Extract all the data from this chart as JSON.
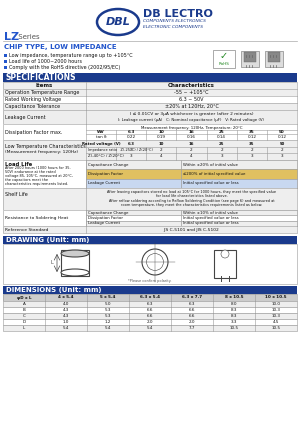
{
  "chip_type": "CHIP TYPE, LOW IMPEDANCE",
  "bullets": [
    "Low impedance, temperature range up to +105°C",
    "Load life of 1000~2000 hours",
    "Comply with the RoHS directive (2002/95/EC)"
  ],
  "spec_title": "SPECIFICATIONS",
  "spec_rows": [
    {
      "item": "Operation Temperature Range",
      "char": "-55 ~ +105°C"
    },
    {
      "item": "Rated Working Voltage",
      "char": "6.3 ~ 50V"
    },
    {
      "item": "Capacitance Tolerance",
      "char": "±20% at 120Hz, 20°C"
    }
  ],
  "leakage_label": "Leakage Current",
  "leakage_formula": "I ≤ 0.01CV or 3μA whichever is greater (after 2 minutes)",
  "leakage_sub": "I: Leakage current (μA)   C: Nominal capacitance (μF)   V: Rated voltage (V)",
  "dissipation_label": "Dissipation Factor max.",
  "dissipation_freq": "Measurement frequency: 120Hz, Temperature: 20°C",
  "dissipation_headers": [
    "WV",
    "6.3",
    "10",
    "16",
    "25",
    "35",
    "50"
  ],
  "dissipation_values": [
    "tan δ",
    "0.22",
    "0.19",
    "0.16",
    "0.14",
    "0.12",
    "0.12"
  ],
  "low_temp_label": "Low Temperature Characteristics\n(Measurement frequency: 120Hz)",
  "low_temp_headers": [
    "Rated voltage (V)",
    "6.3",
    "10",
    "16",
    "25",
    "35",
    "50"
  ],
  "low_temp_row1_label": "Impedance ratio   Z(-25°C) / Z(20°C)",
  "low_temp_row2_label": "Z(-40°C) / Z(20°C)",
  "low_temp_row1_vals": [
    "2",
    "2",
    "2",
    "2",
    "2",
    "2"
  ],
  "low_temp_row2_vals": [
    "3",
    "4",
    "4",
    "3",
    "3",
    "3"
  ],
  "load_life_label": "Load Life",
  "load_life_desc1": "After 2000 hours (1000 hours for 35,",
  "load_life_desc2": "50V) endurance at the rated",
  "load_life_desc3": "voltage 85, 105°C, measured at 20°C,",
  "load_life_desc4": "the capacitors meet the",
  "load_life_desc5": "characteristics requirements listed.",
  "load_life_rows": [
    [
      "Capacitance Change",
      "Within ±20% of initial value"
    ],
    [
      "Dissipation Factor",
      "≤200% of initial specified value"
    ],
    [
      "Leakage Current",
      "Initial specified value or less"
    ]
  ],
  "shelf_life_label": "Shelf Life",
  "shelf_life_text1": "After leaving capacitors stored no load at 105°C for 1000 hours, they meet the specified value",
  "shelf_life_text2": "for load life characteristics listed above.",
  "shelf_life_text3": "After reflow soldering according to Reflow Soldering Condition (see page 6) and measured at",
  "shelf_life_text4": "room temperature, they meet the characteristics requirements listed as below.",
  "resist_solder_label": "Resistance to Soldering Heat",
  "resist_solder_rows": [
    [
      "Capacitance Change",
      "Within ±10% of initial value"
    ],
    [
      "Dissipation Factor",
      "Initial specified value or less"
    ],
    [
      "Leakage Current",
      "Initial specified value or less"
    ]
  ],
  "ref_standard_label": "Reference Standard",
  "ref_standard_val": "JIS C-5101 and JIS C-5102",
  "drawing_title": "DRAWING (Unit: mm)",
  "dimensions_title": "DIMENSIONS (Unit: mm)",
  "dim_headers": [
    "φD x L",
    "4 x 5.4",
    "5 x 5.4",
    "6.3 x 5.4",
    "6.3 x 7.7",
    "8 x 10.5",
    "10 x 10.5"
  ],
  "dim_rows": [
    [
      "A",
      "4.0",
      "5.0",
      "6.3",
      "6.3",
      "8.0",
      "10.0"
    ],
    [
      "B",
      "4.3",
      "5.3",
      "6.6",
      "6.6",
      "8.3",
      "10.3"
    ],
    [
      "C",
      "4.3",
      "5.3",
      "6.6",
      "6.6",
      "8.3",
      "10.3"
    ],
    [
      "D",
      "1.0",
      "1.2",
      "2.0",
      "2.0",
      "3.3",
      "4.5"
    ],
    [
      "L",
      "5.4",
      "5.4",
      "5.4",
      "7.7",
      "10.5",
      "10.5"
    ]
  ],
  "header_blue": "#1a3a8c",
  "section_blue": "#2255cc",
  "bg_white": "#ffffff",
  "bg_gray": "#eeeeee",
  "table_header_bg": "#cccccc",
  "logo_blue": "#1a3a8c",
  "border_color": "#999999",
  "load_life_highlight1": "#e0c060",
  "load_life_highlight2": "#c8d8f0"
}
